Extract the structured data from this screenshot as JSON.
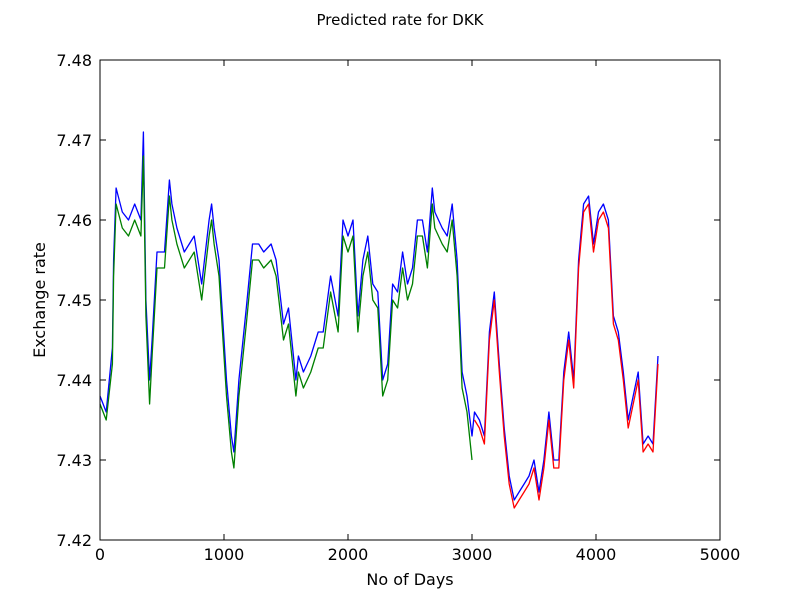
{
  "chart_data": {
    "type": "line",
    "title": "Predicted rate for DKK",
    "xlabel": "No of Days",
    "ylabel": "Exchange rate",
    "xlim": [
      0,
      5000
    ],
    "ylim": [
      7.42,
      7.48
    ],
    "x_ticks": [
      "0",
      "1000",
      "2000",
      "3000",
      "4000",
      "5000"
    ],
    "y_ticks": [
      "7.42",
      "7.43",
      "7.44",
      "7.45",
      "7.46",
      "7.47",
      "7.48"
    ],
    "x_tick_values": [
      0,
      1000,
      2000,
      3000,
      4000,
      5000
    ],
    "y_tick_values": [
      7.42,
      7.43,
      7.44,
      7.45,
      7.46,
      7.47,
      7.48
    ],
    "grid": false,
    "legend": "none",
    "series": [
      {
        "color": "#0000ff",
        "x": [
          0,
          50,
          100,
          110,
          130,
          180,
          230,
          280,
          330,
          350,
          370,
          400,
          420,
          460,
          520,
          560,
          580,
          620,
          680,
          760,
          820,
          880,
          900,
          920,
          960,
          1020,
          1060,
          1080,
          1120,
          1180,
          1230,
          1280,
          1320,
          1380,
          1420,
          1480,
          1520,
          1580,
          1600,
          1640,
          1700,
          1760,
          1800,
          1860,
          1920,
          1960,
          2000,
          2040,
          2080,
          2120,
          2160,
          2200,
          2240,
          2280,
          2320,
          2360,
          2400,
          2440,
          2480,
          2520,
          2560,
          2600,
          2640,
          2680,
          2700,
          2760,
          2800,
          2840,
          2880,
          2920,
          2960,
          3000,
          3020,
          3060,
          3100,
          3140,
          3180,
          3220,
          3260,
          3300,
          3340,
          3380,
          3420,
          3460,
          3500,
          3540,
          3580,
          3620,
          3660,
          3700,
          3740,
          3780,
          3820,
          3860,
          3900,
          3940,
          3980,
          4020,
          4060,
          4100,
          4140,
          4180,
          4220,
          4260,
          4300,
          4340,
          4380,
          4420,
          4460,
          4500
        ],
        "y": [
          7.438,
          7.436,
          7.444,
          7.455,
          7.464,
          7.461,
          7.46,
          7.462,
          7.46,
          7.471,
          7.45,
          7.44,
          7.445,
          7.456,
          7.456,
          7.465,
          7.462,
          7.459,
          7.456,
          7.458,
          7.452,
          7.46,
          7.462,
          7.459,
          7.455,
          7.44,
          7.433,
          7.431,
          7.44,
          7.449,
          7.457,
          7.457,
          7.456,
          7.457,
          7.455,
          7.447,
          7.449,
          7.44,
          7.443,
          7.441,
          7.443,
          7.446,
          7.446,
          7.453,
          7.448,
          7.46,
          7.458,
          7.46,
          7.448,
          7.455,
          7.458,
          7.452,
          7.451,
          7.44,
          7.442,
          7.452,
          7.451,
          7.456,
          7.452,
          7.454,
          7.46,
          7.46,
          7.456,
          7.464,
          7.461,
          7.459,
          7.458,
          7.462,
          7.455,
          7.441,
          7.438,
          7.433,
          7.436,
          7.435,
          7.433,
          7.446,
          7.451,
          7.442,
          7.434,
          7.428,
          7.425,
          7.426,
          7.427,
          7.428,
          7.43,
          7.426,
          7.43,
          7.436,
          7.43,
          7.43,
          7.441,
          7.446,
          7.44,
          7.455,
          7.462,
          7.463,
          7.457,
          7.461,
          7.462,
          7.46,
          7.448,
          7.446,
          7.441,
          7.435,
          7.438,
          7.441,
          7.432,
          7.433,
          7.432,
          7.443
        ]
      },
      {
        "color": "#008000",
        "x": [
          0,
          50,
          100,
          110,
          130,
          180,
          230,
          280,
          330,
          350,
          370,
          400,
          420,
          460,
          520,
          560,
          580,
          620,
          680,
          760,
          820,
          880,
          900,
          920,
          960,
          1020,
          1060,
          1080,
          1120,
          1180,
          1230,
          1280,
          1320,
          1380,
          1420,
          1480,
          1520,
          1580,
          1600,
          1640,
          1700,
          1760,
          1800,
          1860,
          1920,
          1960,
          2000,
          2040,
          2080,
          2120,
          2160,
          2200,
          2240,
          2280,
          2320,
          2360,
          2400,
          2440,
          2480,
          2520,
          2560,
          2600,
          2640,
          2680,
          2700,
          2760,
          2800,
          2840,
          2880,
          2920,
          2960,
          3000
        ],
        "y": [
          7.437,
          7.435,
          7.442,
          7.453,
          7.462,
          7.459,
          7.458,
          7.46,
          7.458,
          7.468,
          7.448,
          7.437,
          7.443,
          7.454,
          7.454,
          7.463,
          7.46,
          7.457,
          7.454,
          7.456,
          7.45,
          7.458,
          7.46,
          7.457,
          7.453,
          7.438,
          7.431,
          7.429,
          7.438,
          7.447,
          7.455,
          7.455,
          7.454,
          7.455,
          7.453,
          7.445,
          7.447,
          7.438,
          7.441,
          7.439,
          7.441,
          7.444,
          7.444,
          7.451,
          7.446,
          7.458,
          7.456,
          7.458,
          7.446,
          7.453,
          7.456,
          7.45,
          7.449,
          7.438,
          7.44,
          7.45,
          7.449,
          7.454,
          7.45,
          7.452,
          7.458,
          7.458,
          7.454,
          7.462,
          7.459,
          7.457,
          7.456,
          7.46,
          7.453,
          7.439,
          7.436,
          7.43
        ]
      },
      {
        "color": "#ff0000",
        "x": [
          3020,
          3060,
          3100,
          3140,
          3180,
          3220,
          3260,
          3300,
          3340,
          3380,
          3420,
          3460,
          3500,
          3540,
          3580,
          3620,
          3660,
          3700,
          3740,
          3780,
          3820,
          3860,
          3900,
          3940,
          3980,
          4020,
          4060,
          4100,
          4140,
          4180,
          4220,
          4260,
          4300,
          4340,
          4380,
          4420,
          4460,
          4500
        ],
        "y": [
          7.435,
          7.434,
          7.432,
          7.445,
          7.45,
          7.441,
          7.433,
          7.427,
          7.424,
          7.425,
          7.426,
          7.427,
          7.429,
          7.425,
          7.429,
          7.435,
          7.429,
          7.429,
          7.44,
          7.445,
          7.439,
          7.454,
          7.461,
          7.462,
          7.456,
          7.46,
          7.461,
          7.459,
          7.447,
          7.445,
          7.44,
          7.434,
          7.437,
          7.44,
          7.431,
          7.432,
          7.431,
          7.442
        ]
      }
    ]
  }
}
